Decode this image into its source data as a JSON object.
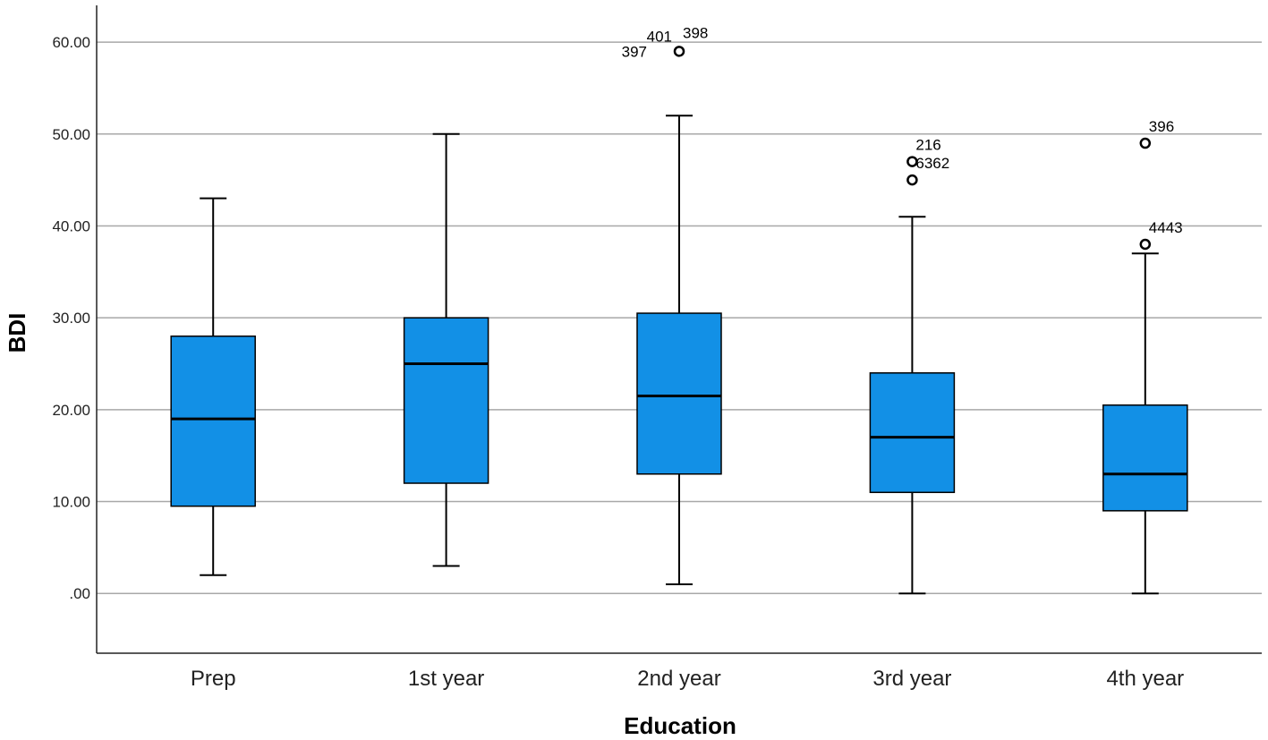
{
  "chart_data": {
    "type": "boxplot",
    "title": "",
    "xlabel": "Education",
    "ylabel": "BDI",
    "ylim": [
      -6.5,
      64
    ],
    "yticks": [
      0,
      10,
      20,
      30,
      40,
      50,
      60
    ],
    "ytick_labels": [
      ".00",
      "10.00",
      "20.00",
      "30.00",
      "40.00",
      "50.00",
      "60.00"
    ],
    "grid": true,
    "box_color": "#1290e6",
    "categories": [
      "Prep",
      "1st year",
      "2nd year",
      "3rd year",
      "4th year"
    ],
    "boxes": [
      {
        "category": "Prep",
        "whisker_low": 2,
        "q1": 9.5,
        "median": 19,
        "q3": 28,
        "whisker_high": 43,
        "outliers": []
      },
      {
        "category": "1st year",
        "whisker_low": 3,
        "q1": 12,
        "median": 25,
        "q3": 30,
        "whisker_high": 50,
        "outliers": []
      },
      {
        "category": "2nd year",
        "whisker_low": 1,
        "q1": 13,
        "median": 21.5,
        "q3": 30.5,
        "whisker_high": 52,
        "outliers": [
          {
            "value": 59,
            "labels": [
              "397",
              "401",
              "398"
            ]
          }
        ]
      },
      {
        "category": "3rd year",
        "whisker_low": 0,
        "q1": 11,
        "median": 17,
        "q3": 24,
        "whisker_high": 41,
        "outliers": [
          {
            "value": 47,
            "labels": [
              "216"
            ]
          },
          {
            "value": 45,
            "labels": [
              "6362"
            ]
          }
        ]
      },
      {
        "category": "4th year",
        "whisker_low": 0,
        "q1": 9,
        "median": 13,
        "q3": 20.5,
        "whisker_high": 37,
        "outliers": [
          {
            "value": 49,
            "labels": [
              "396"
            ]
          },
          {
            "value": 38,
            "labels": [
              "4443"
            ]
          }
        ]
      }
    ]
  }
}
